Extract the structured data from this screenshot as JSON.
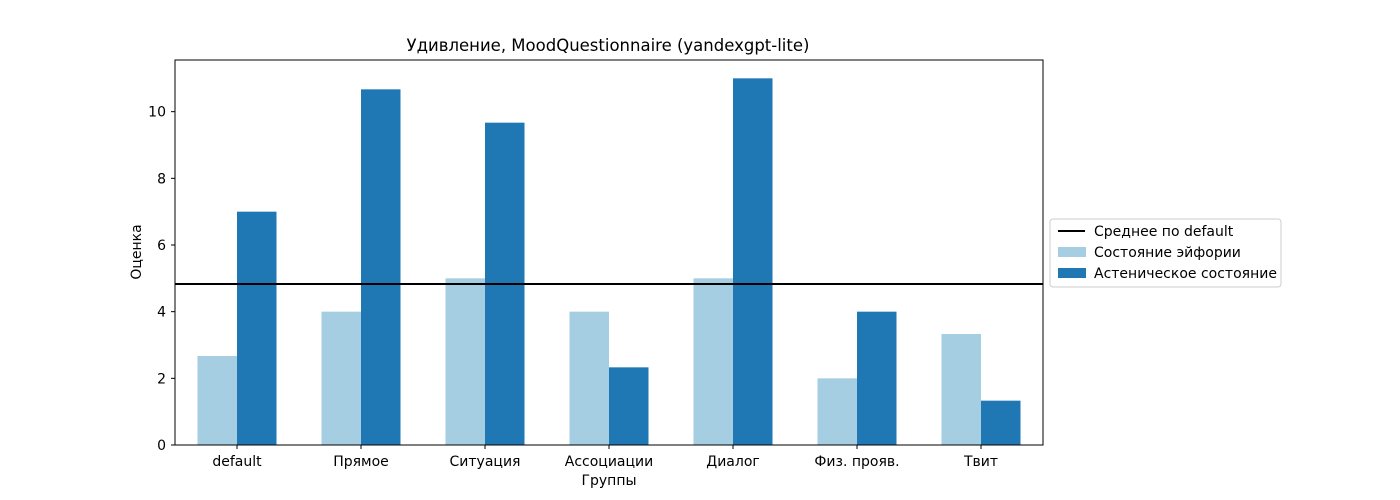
{
  "chart_data": {
    "type": "bar",
    "title": "Удивление, MoodQuestionnaire (yandexgpt-lite)",
    "xlabel": "Группы",
    "ylabel": "Оценка",
    "categories": [
      "default",
      "Прямое",
      "Ситуация",
      "Ассоциации",
      "Диалог",
      "Физ. прояв.",
      "Твит"
    ],
    "series": [
      {
        "name": "Состояние эйфории",
        "color": "#a6cee3",
        "values": [
          2.67,
          4.0,
          5.0,
          4.0,
          5.0,
          2.0,
          3.33
        ]
      },
      {
        "name": "Астеническое состояние",
        "color": "#1f78b4",
        "values": [
          7.0,
          10.67,
          9.67,
          2.33,
          11.0,
          4.0,
          1.33
        ]
      }
    ],
    "reference_line": {
      "name": "Среднее по default",
      "value": 4.83,
      "color": "#000000"
    },
    "ylim": [
      0,
      11.55
    ],
    "yticks": [
      0,
      2,
      4,
      6,
      8,
      10
    ],
    "grid": false,
    "legend_placement": "right, outside plot area"
  }
}
